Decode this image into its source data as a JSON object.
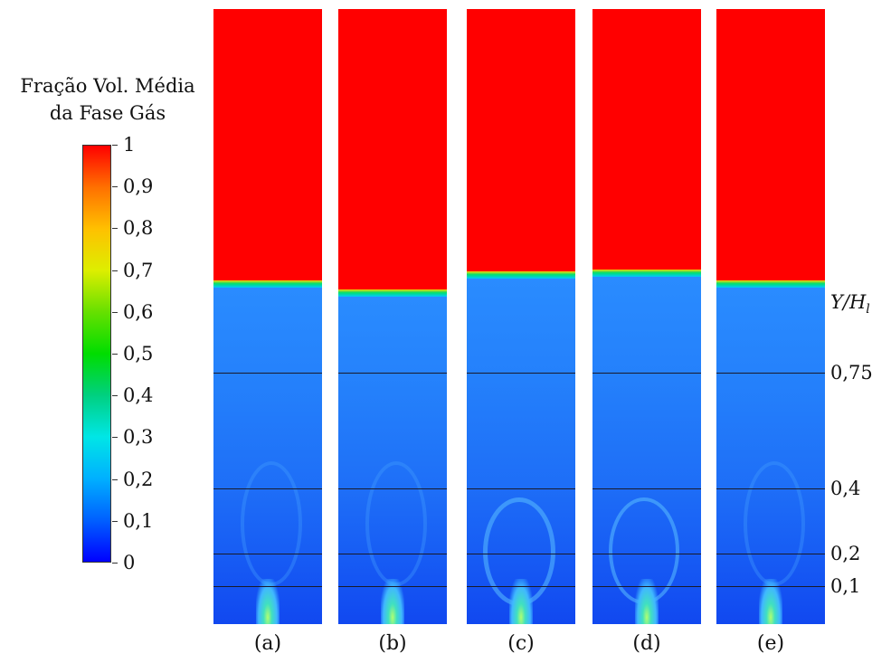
{
  "colorbar": {
    "title_line1": "Fração Vol. Média",
    "title_line2": "da Fase Gás",
    "labels": [
      "1",
      "0,9",
      "0,8",
      "0,7",
      "0,6",
      "0,5",
      "0,4",
      "0,3",
      "0,2",
      "0,1",
      "0"
    ],
    "colors": [
      "#0000ff",
      "#00b0ff",
      "#00dd00",
      "#ffee00",
      "#ff0000"
    ]
  },
  "axis": {
    "title_main": "Y/H",
    "title_sub": "l",
    "levels": [
      "0,75",
      "0,4",
      "0,2",
      "0,1"
    ]
  },
  "panels": [
    {
      "label": "(a)"
    },
    {
      "label": "(b)"
    },
    {
      "label": "(c)"
    },
    {
      "label": "(d)"
    },
    {
      "label": "(e)"
    }
  ]
}
